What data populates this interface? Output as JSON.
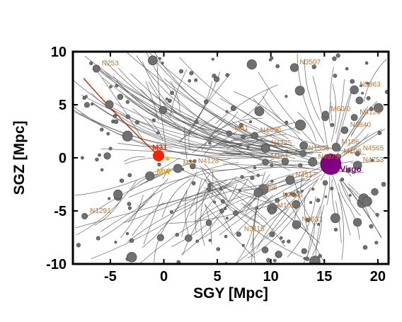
{
  "chart_data": {
    "type": "scatter",
    "xlabel": "SGY [Mpc]",
    "ylabel": "SGZ [Mpc]",
    "xlim": [
      -8.5,
      21
    ],
    "ylim": [
      -10,
      10
    ],
    "xticks": [
      -5,
      0,
      5,
      10,
      15,
      20
    ],
    "yticks": [
      -10,
      -5,
      0,
      5,
      10
    ],
    "grid": false,
    "colors": {
      "trajectory": "#555555",
      "point": "#707070",
      "galaxy_label": "#b87333",
      "virgo": "#800080",
      "m31": "#ff2000",
      "m31_track": "#c03000",
      "mw": "#e8c000",
      "mw_label": "#e8a000"
    },
    "special_points": [
      {
        "key": "virgo",
        "label": "Virgo",
        "x": 15.6,
        "y": -0.6
      },
      {
        "key": "m31",
        "label": "M31",
        "x": -0.5,
        "y": 0.2
      },
      {
        "key": "mw",
        "label": "MW",
        "x": 0.0,
        "y": 0.0
      }
    ],
    "labels": [
      {
        "text": "N253",
        "x": -5.8,
        "y": 8.7
      },
      {
        "text": "N3507",
        "x": 12.7,
        "y": 8.8
      },
      {
        "text": "N5863",
        "x": 18.3,
        "y": 6.7
      },
      {
        "text": "M60/0",
        "x": 15.6,
        "y": 4.4
      },
      {
        "text": "N4125",
        "x": 18.3,
        "y": 4.1
      },
      {
        "text": "N3640",
        "x": 17.4,
        "y": 2.9
      },
      {
        "text": "M51",
        "x": 6.6,
        "y": 2.6
      },
      {
        "text": "N4490",
        "x": 9.0,
        "y": 2.4
      },
      {
        "text": "N4725",
        "x": 10.0,
        "y": 1.2
      },
      {
        "text": "M106",
        "x": 16.6,
        "y": 1.3
      },
      {
        "text": "N1566",
        "x": 13.5,
        "y": 0.7
      },
      {
        "text": "N4565",
        "x": 18.6,
        "y": 0.7
      },
      {
        "text": "M108",
        "x": 16.8,
        "y": 0.4
      },
      {
        "text": "M101",
        "x": 10.0,
        "y": -0.1
      },
      {
        "text": "N4975",
        "x": 14.4,
        "y": -0.1
      },
      {
        "text": "N4753",
        "x": 18.6,
        "y": -0.4
      },
      {
        "text": "N4128",
        "x": 3.2,
        "y": -0.5
      },
      {
        "text": "M81",
        "x": 1.8,
        "y": -0.7
      },
      {
        "text": "N4517",
        "x": 12.3,
        "y": -1.8
      },
      {
        "text": "M66",
        "x": 9.3,
        "y": -3.0
      },
      {
        "text": "N2841",
        "x": 11.1,
        "y": -3.7
      },
      {
        "text": "M105",
        "x": 10.6,
        "y": -4.7
      },
      {
        "text": "N1291",
        "x": -6.9,
        "y": -5.2
      },
      {
        "text": "N4631",
        "x": 12.9,
        "y": -6.0
      },
      {
        "text": "N3115",
        "x": 7.5,
        "y": -6.9
      }
    ]
  }
}
